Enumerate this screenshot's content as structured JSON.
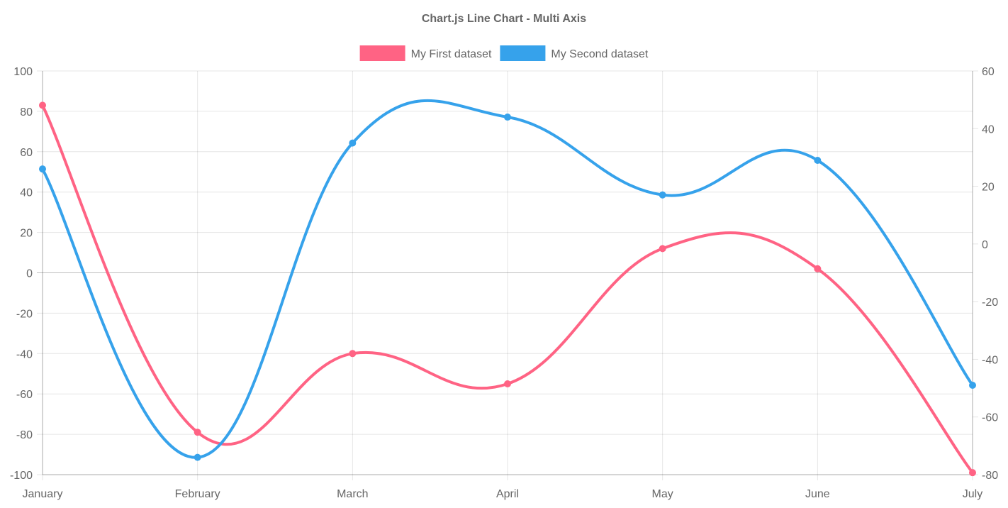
{
  "chart_data": {
    "type": "line",
    "title": "Chart.js Line Chart - Multi Axis",
    "categories": [
      "January",
      "February",
      "March",
      "April",
      "May",
      "June",
      "July"
    ],
    "legend_position": "top",
    "grid": true,
    "series": [
      {
        "name": "My First dataset",
        "axis": "left",
        "color": "#ff6384",
        "values": [
          83,
          -79,
          -40,
          -55,
          12,
          2,
          -99
        ]
      },
      {
        "name": "My Second dataset",
        "axis": "right",
        "color": "#36a2eb",
        "values": [
          26,
          -74,
          35,
          44,
          17,
          29,
          -49
        ]
      }
    ],
    "y_left": {
      "range": [
        -100,
        100
      ],
      "ticks": [
        100,
        80,
        60,
        40,
        20,
        0,
        -20,
        -40,
        -60,
        -80,
        -100
      ]
    },
    "y_right": {
      "range": [
        -80,
        60
      ],
      "ticks": [
        60,
        40,
        20,
        0,
        -20,
        -40,
        -60,
        -80
      ]
    }
  }
}
